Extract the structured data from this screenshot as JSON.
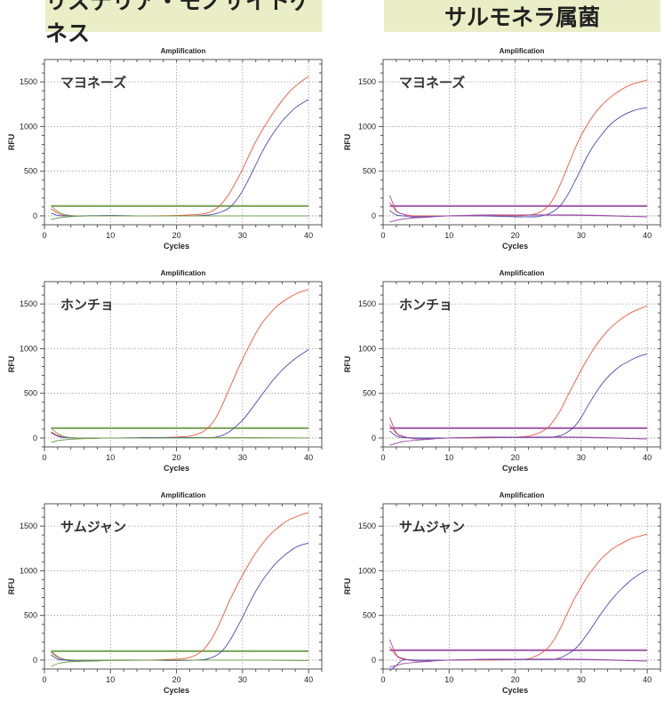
{
  "headers": {
    "left": "リステリア・モノサイトゲネス",
    "right": "サルモネラ属菌"
  },
  "colors": {
    "header_bg": "#eaeec6",
    "red_curve": "#f0553a",
    "blue_curve": "#4a4ab8",
    "green_threshold": "#6f9e4a",
    "purple_threshold": "#9b4fa8"
  },
  "chart_data": [
    {
      "type": "line",
      "title": "Amplification",
      "xlabel": "Cycles",
      "ylabel": "RFU",
      "column": "left",
      "sample": "マヨネーズ",
      "xlim": [
        0,
        42
      ],
      "ylim": [
        -100,
        1750
      ],
      "xticks": [
        "0",
        "10",
        "20",
        "30",
        "40"
      ],
      "yticks": [
        "0",
        "500",
        "1000",
        "1500"
      ],
      "threshold": 110,
      "threshold_color": "green",
      "series": [
        {
          "name": "red",
          "color": "#f0553a",
          "x": [
            1,
            2,
            3,
            5,
            10,
            15,
            20,
            22,
            24,
            25,
            26,
            27,
            28,
            29,
            30,
            31,
            32,
            33,
            34,
            35,
            36,
            37,
            38,
            39,
            40
          ],
          "y": [
            80,
            30,
            5,
            0,
            0,
            0,
            5,
            10,
            20,
            40,
            80,
            150,
            250,
            380,
            520,
            680,
            830,
            960,
            1080,
            1190,
            1290,
            1380,
            1450,
            1510,
            1560
          ]
        },
        {
          "name": "blue",
          "color": "#4a4ab8",
          "x": [
            1,
            2,
            3,
            5,
            10,
            15,
            20,
            22,
            24,
            25,
            26,
            27,
            28,
            29,
            30,
            31,
            32,
            33,
            34,
            35,
            36,
            37,
            38,
            39,
            40
          ],
          "y": [
            30,
            5,
            0,
            0,
            5,
            0,
            0,
            0,
            5,
            10,
            25,
            50,
            90,
            170,
            280,
            420,
            570,
            720,
            850,
            960,
            1060,
            1140,
            1210,
            1260,
            1300
          ]
        },
        {
          "name": "green-neg",
          "color": "#6f9e4a",
          "x": [
            1,
            2,
            3,
            5,
            8,
            10,
            20,
            30,
            40
          ],
          "y": [
            110,
            50,
            15,
            0,
            0,
            0,
            0,
            0,
            0
          ]
        },
        {
          "name": "green-low",
          "color": "#6f9e4a",
          "x": [
            1,
            2,
            3,
            5,
            8,
            10,
            20,
            30,
            40
          ],
          "y": [
            -40,
            -25,
            -15,
            -5,
            0,
            0,
            0,
            0,
            0
          ]
        }
      ]
    },
    {
      "type": "line",
      "title": "Amplification",
      "xlabel": "Cycles",
      "ylabel": "RFU",
      "column": "right",
      "sample": "マヨネーズ",
      "xlim": [
        0,
        42
      ],
      "ylim": [
        -100,
        1750
      ],
      "xticks": [
        "0",
        "10",
        "20",
        "30",
        "40"
      ],
      "yticks": [
        "0",
        "500",
        "1000",
        "1500"
      ],
      "threshold": 110,
      "threshold_color": "purple",
      "series": [
        {
          "name": "red",
          "color": "#f0553a",
          "x": [
            1,
            2,
            3,
            4,
            5,
            8,
            10,
            15,
            20,
            22,
            23,
            24,
            25,
            26,
            27,
            28,
            29,
            30,
            31,
            32,
            33,
            34,
            35,
            36,
            37,
            38,
            39,
            40
          ],
          "y": [
            150,
            50,
            20,
            5,
            0,
            0,
            0,
            0,
            0,
            10,
            20,
            50,
            110,
            220,
            380,
            560,
            740,
            900,
            1030,
            1140,
            1230,
            1300,
            1360,
            1410,
            1450,
            1480,
            1500,
            1520
          ]
        },
        {
          "name": "blue",
          "color": "#4a4ab8",
          "x": [
            1,
            2,
            3,
            5,
            10,
            15,
            20,
            23,
            24,
            25,
            26,
            27,
            28,
            29,
            30,
            31,
            32,
            33,
            34,
            35,
            36,
            37,
            38,
            39,
            40
          ],
          "y": [
            60,
            10,
            0,
            -10,
            0,
            0,
            -10,
            -10,
            0,
            20,
            60,
            130,
            240,
            380,
            530,
            680,
            800,
            900,
            990,
            1060,
            1110,
            1150,
            1180,
            1200,
            1210
          ]
        },
        {
          "name": "purple-neg",
          "color": "#9b4fa8",
          "x": [
            1,
            2,
            3,
            5,
            10,
            15,
            20,
            30,
            40
          ],
          "y": [
            230,
            60,
            20,
            -20,
            0,
            10,
            10,
            10,
            -10
          ]
        },
        {
          "name": "purple-low",
          "color": "#9b4fa8",
          "x": [
            1,
            2,
            3,
            5,
            7,
            10,
            20,
            30,
            40
          ],
          "y": [
            -70,
            -50,
            -35,
            -20,
            -10,
            0,
            10,
            5,
            -10
          ]
        }
      ]
    },
    {
      "type": "line",
      "title": "Amplification",
      "xlabel": "Cycles",
      "ylabel": "RFU",
      "column": "left",
      "sample": "ホンチョ",
      "xlim": [
        0,
        42
      ],
      "ylim": [
        -100,
        1750
      ],
      "xticks": [
        "0",
        "10",
        "20",
        "30",
        "40"
      ],
      "yticks": [
        "0",
        "500",
        "1000",
        "1500"
      ],
      "threshold": 110,
      "threshold_color": "green",
      "series": [
        {
          "name": "red",
          "color": "#f0553a",
          "x": [
            1,
            2,
            3,
            5,
            10,
            15,
            20,
            22,
            23,
            24,
            25,
            26,
            27,
            28,
            29,
            30,
            31,
            32,
            33,
            34,
            35,
            36,
            37,
            38,
            39,
            40
          ],
          "y": [
            70,
            30,
            10,
            0,
            0,
            0,
            10,
            20,
            40,
            70,
            130,
            230,
            380,
            550,
            720,
            880,
            1030,
            1170,
            1290,
            1380,
            1460,
            1520,
            1570,
            1610,
            1640,
            1660
          ]
        },
        {
          "name": "blue",
          "color": "#4a4ab8",
          "x": [
            1,
            2,
            3,
            5,
            10,
            15,
            20,
            25,
            26,
            27,
            28,
            29,
            30,
            31,
            32,
            33,
            34,
            35,
            36,
            37,
            38,
            39,
            40
          ],
          "y": [
            60,
            20,
            5,
            0,
            0,
            5,
            5,
            5,
            10,
            30,
            70,
            130,
            200,
            290,
            390,
            490,
            590,
            680,
            760,
            830,
            890,
            940,
            990
          ]
        },
        {
          "name": "green-neg",
          "color": "#6f9e4a",
          "x": [
            1,
            2,
            3,
            5,
            8,
            10,
            20,
            30,
            40
          ],
          "y": [
            110,
            50,
            15,
            0,
            0,
            0,
            0,
            5,
            0
          ]
        },
        {
          "name": "green-low",
          "color": "#6f9e4a",
          "x": [
            1,
            2,
            3,
            5,
            8,
            10,
            20,
            30,
            40
          ],
          "y": [
            -50,
            -30,
            -20,
            -10,
            -5,
            0,
            0,
            0,
            0
          ]
        }
      ]
    },
    {
      "type": "line",
      "title": "Amplification",
      "xlabel": "Cycles",
      "ylabel": "RFU",
      "column": "right",
      "sample": "ホンチョ",
      "xlim": [
        0,
        42
      ],
      "ylim": [
        -100,
        1750
      ],
      "xticks": [
        "0",
        "10",
        "20",
        "30",
        "40"
      ],
      "yticks": [
        "0",
        "500",
        "1000",
        "1500"
      ],
      "threshold": 110,
      "threshold_color": "purple",
      "series": [
        {
          "name": "red",
          "color": "#f0553a",
          "x": [
            1,
            2,
            3,
            5,
            10,
            15,
            20,
            22,
            23,
            24,
            25,
            26,
            27,
            28,
            29,
            30,
            31,
            32,
            33,
            34,
            35,
            36,
            37,
            38,
            39,
            40
          ],
          "y": [
            150,
            50,
            15,
            0,
            0,
            0,
            10,
            20,
            40,
            70,
            120,
            210,
            330,
            480,
            620,
            760,
            890,
            1010,
            1110,
            1200,
            1270,
            1330,
            1380,
            1420,
            1450,
            1480
          ]
        },
        {
          "name": "blue",
          "color": "#4a4ab8",
          "x": [
            1,
            2,
            3,
            5,
            10,
            15,
            20,
            25,
            26,
            27,
            28,
            29,
            30,
            31,
            32,
            33,
            34,
            35,
            36,
            37,
            38,
            39,
            40
          ],
          "y": [
            80,
            20,
            5,
            0,
            0,
            5,
            5,
            5,
            15,
            30,
            70,
            130,
            230,
            360,
            480,
            590,
            680,
            750,
            810,
            850,
            890,
            920,
            940
          ]
        },
        {
          "name": "purple-neg",
          "color": "#9b4fa8",
          "x": [
            1,
            2,
            3,
            5,
            10,
            15,
            20,
            30,
            40
          ],
          "y": [
            230,
            60,
            20,
            -10,
            0,
            10,
            10,
            10,
            -10
          ]
        },
        {
          "name": "purple-low",
          "color": "#9b4fa8",
          "x": [
            1,
            2,
            3,
            5,
            7,
            10,
            20,
            30,
            40
          ],
          "y": [
            -80,
            -60,
            -40,
            -25,
            -15,
            0,
            10,
            5,
            -10
          ]
        }
      ]
    },
    {
      "type": "line",
      "title": "Amplification",
      "xlabel": "Cycles",
      "ylabel": "RFU",
      "column": "left",
      "sample": "サムジャン",
      "xlim": [
        0,
        42
      ],
      "ylim": [
        -100,
        1750
      ],
      "xticks": [
        "0",
        "10",
        "20",
        "30",
        "40"
      ],
      "yticks": [
        "0",
        "500",
        "1000",
        "1500"
      ],
      "threshold": 100,
      "threshold_color": "green",
      "series": [
        {
          "name": "red",
          "color": "#f0553a",
          "x": [
            1,
            2,
            3,
            5,
            10,
            15,
            20,
            21,
            22,
            23,
            24,
            25,
            26,
            27,
            28,
            29,
            30,
            31,
            32,
            33,
            34,
            35,
            36,
            37,
            38,
            39,
            40
          ],
          "y": [
            90,
            30,
            5,
            -10,
            0,
            0,
            10,
            15,
            30,
            60,
            110,
            200,
            330,
            490,
            660,
            810,
            950,
            1080,
            1200,
            1300,
            1390,
            1460,
            1520,
            1570,
            1600,
            1630,
            1650
          ]
        },
        {
          "name": "blue",
          "color": "#4a4ab8",
          "x": [
            1,
            2,
            3,
            5,
            10,
            15,
            20,
            24,
            25,
            26,
            27,
            28,
            29,
            30,
            31,
            32,
            33,
            34,
            35,
            36,
            37,
            38,
            39,
            40
          ],
          "y": [
            60,
            10,
            0,
            -10,
            0,
            0,
            -5,
            5,
            20,
            50,
            110,
            210,
            340,
            480,
            630,
            770,
            890,
            990,
            1080,
            1150,
            1210,
            1260,
            1290,
            1310
          ]
        },
        {
          "name": "green-neg",
          "color": "#6f9e4a",
          "x": [
            1,
            2,
            3,
            5,
            8,
            10,
            20,
            30,
            40
          ],
          "y": [
            100,
            40,
            10,
            0,
            0,
            0,
            0,
            0,
            -5
          ]
        },
        {
          "name": "green-low",
          "color": "#6f9e4a",
          "x": [
            1,
            2,
            3,
            5,
            8,
            10,
            20,
            30,
            40
          ],
          "y": [
            -70,
            -40,
            -25,
            -15,
            -10,
            -5,
            0,
            0,
            -5
          ]
        }
      ]
    },
    {
      "type": "line",
      "title": "Amplification",
      "xlabel": "Cycles",
      "ylabel": "RFU",
      "column": "right",
      "sample": "サムジャン",
      "xlim": [
        0,
        42
      ],
      "ylim": [
        -100,
        1750
      ],
      "xticks": [
        "0",
        "10",
        "20",
        "30",
        "40"
      ],
      "yticks": [
        "0",
        "500",
        "1000",
        "1500"
      ],
      "threshold": 110,
      "threshold_color": "purple",
      "series": [
        {
          "name": "red",
          "color": "#f0553a",
          "x": [
            1,
            2,
            3,
            5,
            10,
            15,
            20,
            22,
            23,
            24,
            25,
            26,
            27,
            28,
            29,
            30,
            31,
            32,
            33,
            34,
            35,
            36,
            37,
            38,
            39,
            40
          ],
          "y": [
            150,
            50,
            10,
            0,
            0,
            0,
            5,
            15,
            40,
            80,
            140,
            240,
            380,
            540,
            690,
            820,
            940,
            1040,
            1130,
            1200,
            1260,
            1300,
            1340,
            1370,
            1390,
            1410
          ]
        },
        {
          "name": "blue",
          "color": "#4a4ab8",
          "x": [
            1,
            2,
            3,
            5,
            10,
            15,
            20,
            25,
            26,
            27,
            28,
            29,
            30,
            31,
            32,
            33,
            34,
            35,
            36,
            37,
            38,
            39,
            40
          ],
          "y": [
            -120,
            -60,
            0,
            0,
            0,
            5,
            5,
            5,
            10,
            30,
            70,
            120,
            200,
            300,
            410,
            520,
            620,
            710,
            790,
            860,
            920,
            970,
            1010
          ]
        },
        {
          "name": "purple-neg",
          "color": "#9b4fa8",
          "x": [
            1,
            2,
            3,
            5,
            10,
            15,
            20,
            30,
            40
          ],
          "y": [
            230,
            60,
            20,
            -10,
            0,
            10,
            10,
            10,
            -10
          ]
        },
        {
          "name": "purple-low",
          "color": "#9b4fa8",
          "x": [
            1,
            2,
            3,
            5,
            7,
            10,
            20,
            30,
            40
          ],
          "y": [
            -80,
            -60,
            -40,
            -25,
            -15,
            0,
            10,
            5,
            -10
          ]
        }
      ]
    }
  ]
}
